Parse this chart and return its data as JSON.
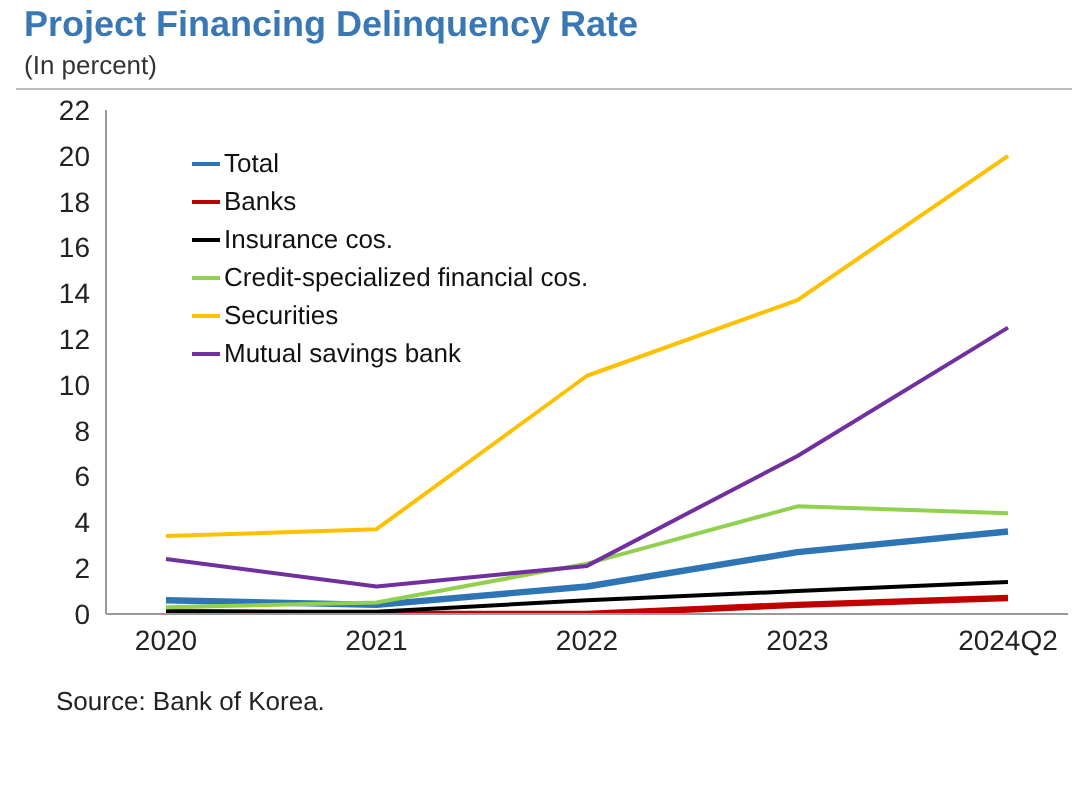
{
  "chart_data": {
    "type": "line",
    "title": "Project Financing Delinquency Rate",
    "subtitle": "(In percent)",
    "annotations": [
      "Source: Bank of Korea."
    ],
    "categories": [
      "2020",
      "2021",
      "2022",
      "2023",
      "2024Q2"
    ],
    "series": [
      {
        "name": "Total",
        "color": "#2e75b6",
        "values": [
          0.6,
          0.4,
          1.2,
          2.7,
          3.6
        ]
      },
      {
        "name": "Banks",
        "color": "#c00000",
        "values": [
          0.1,
          0.0,
          0.0,
          0.4,
          0.7
        ]
      },
      {
        "name": "Insurance cos.",
        "color": "#000000",
        "values": [
          0.1,
          0.1,
          0.6,
          1.0,
          1.4
        ]
      },
      {
        "name": "Credit-specialized financial cos.",
        "color": "#92d050",
        "values": [
          0.3,
          0.5,
          2.2,
          4.7,
          4.4
        ]
      },
      {
        "name": "Securities",
        "color": "#ffc000",
        "values": [
          3.4,
          3.7,
          10.4,
          13.7,
          20.0
        ]
      },
      {
        "name": "Mutual savings bank",
        "color": "#7030a0",
        "values": [
          2.4,
          1.2,
          2.1,
          6.9,
          12.5
        ]
      }
    ],
    "ylim": [
      0,
      22
    ],
    "yticks": [
      0,
      2,
      4,
      6,
      8,
      10,
      12,
      14,
      16,
      18,
      20,
      22
    ],
    "grid": false,
    "legend": "top left",
    "marker": "none",
    "line_style": "solid"
  }
}
